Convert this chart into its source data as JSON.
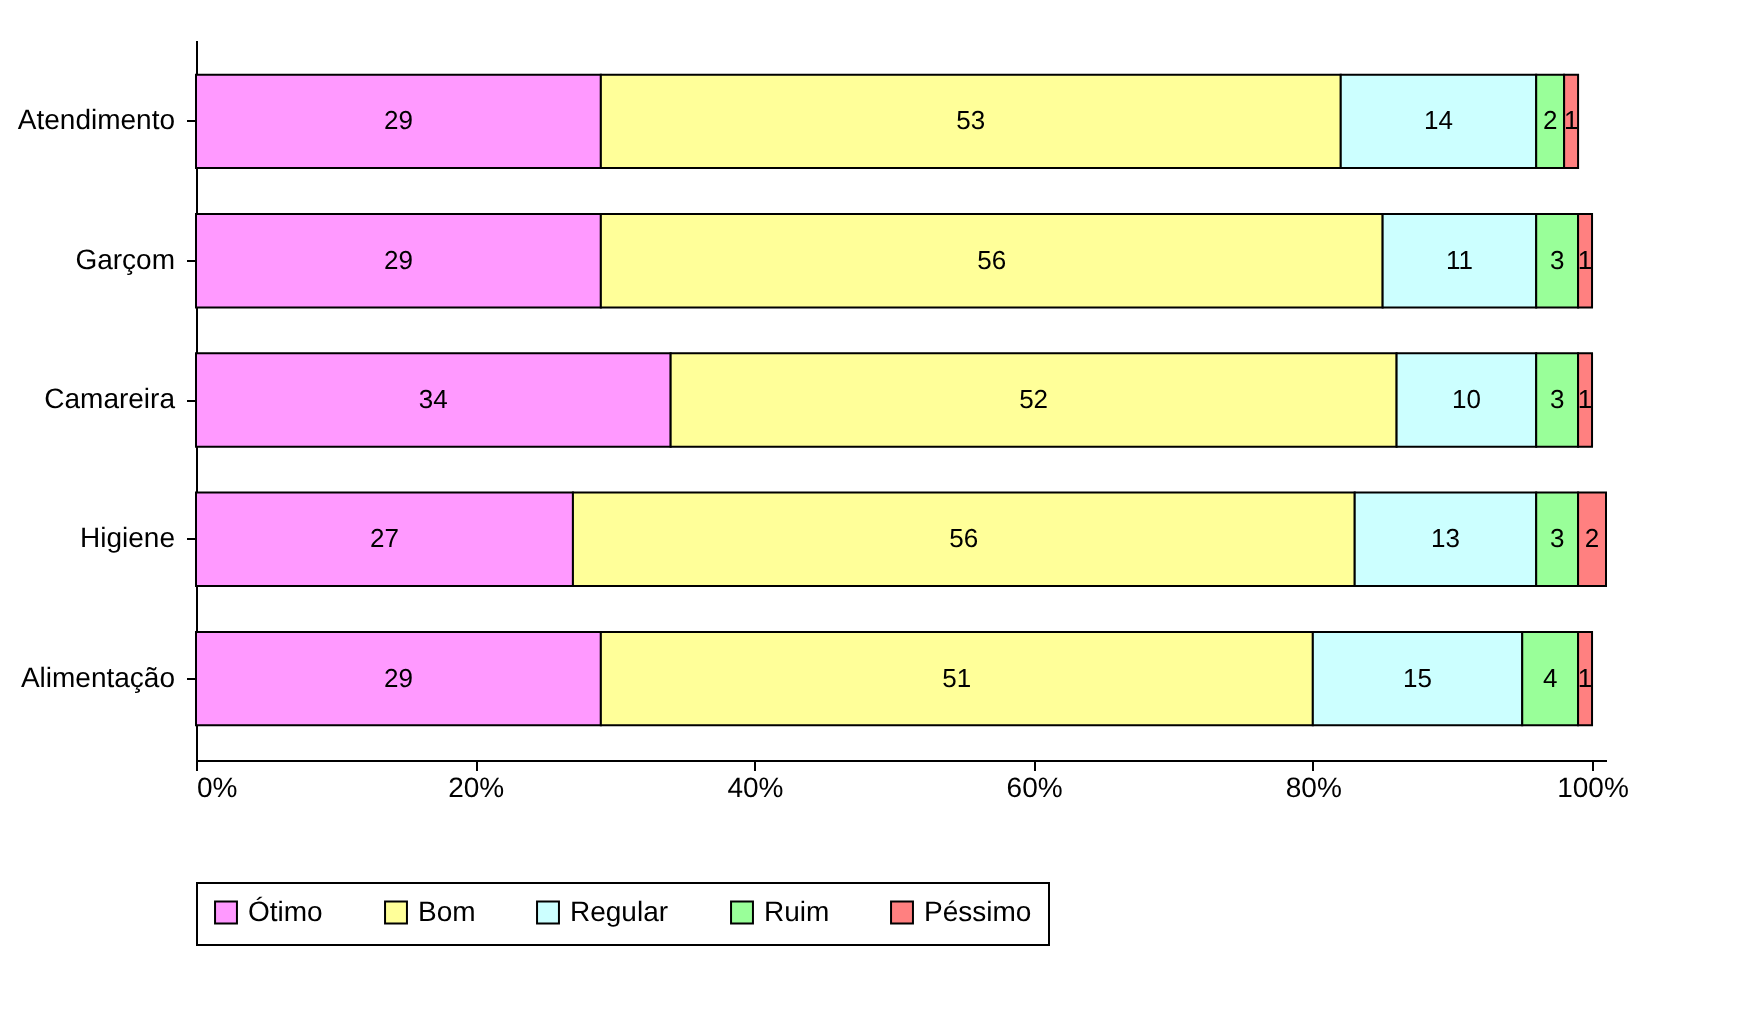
{
  "chart_data": {
    "type": "bar",
    "orientation": "horizontal",
    "stacked": true,
    "data_labels": true,
    "legend": "bottom",
    "grid": false,
    "categories": [
      "Atendimento",
      "Garçom",
      "Camareira",
      "Higiene",
      "Alimentação"
    ],
    "series": [
      {
        "name": "Ótimo",
        "color": "#ff99ff",
        "values": [
          29,
          29,
          34,
          27,
          29
        ]
      },
      {
        "name": "Bom",
        "color": "#ffff99",
        "values": [
          53,
          56,
          52,
          56,
          51
        ]
      },
      {
        "name": "Regular",
        "color": "#ccffff",
        "values": [
          14,
          11,
          10,
          13,
          15
        ]
      },
      {
        "name": "Ruim",
        "color": "#99ff99",
        "values": [
          2,
          3,
          3,
          3,
          4
        ]
      },
      {
        "name": "Péssimo",
        "color": "#ff8080",
        "values": [
          1,
          1,
          1,
          2,
          1
        ]
      }
    ],
    "xlim": [
      0,
      101
    ],
    "xticks": [
      {
        "value": 0,
        "label": "0%"
      },
      {
        "value": 20,
        "label": "20%"
      },
      {
        "value": 40,
        "label": "40%"
      },
      {
        "value": 60,
        "label": "60%"
      },
      {
        "value": 80,
        "label": "80%"
      },
      {
        "value": 100,
        "label": "100%"
      }
    ]
  }
}
